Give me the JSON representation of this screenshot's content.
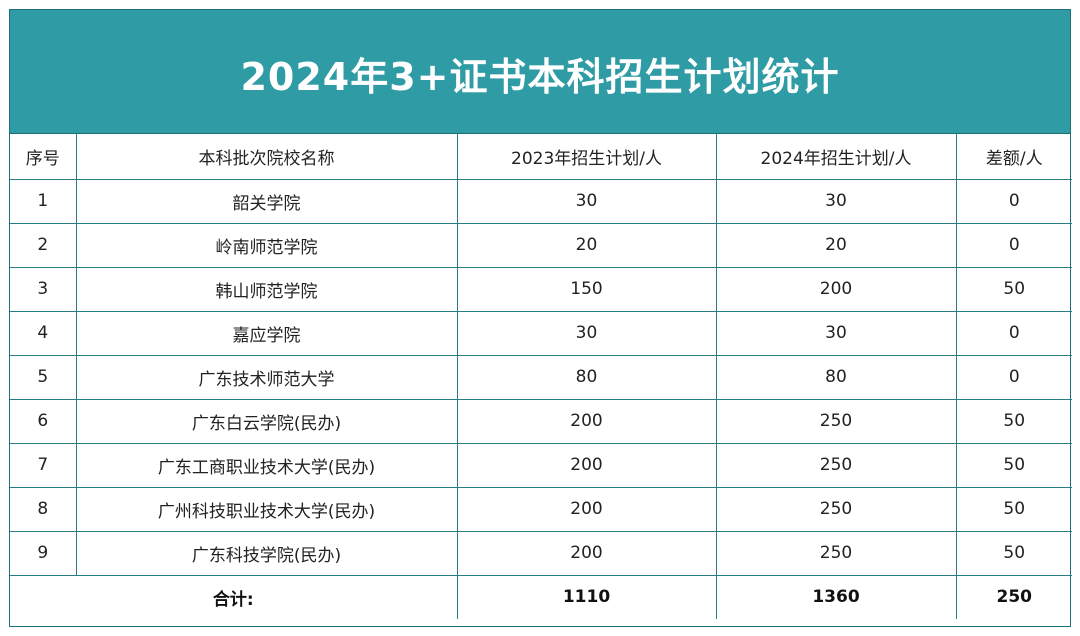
{
  "title": "2024年3+证书本科招生计划统计",
  "headers": {
    "index": "序号",
    "school": "本科批次院校名称",
    "plan_2023": "2023年招生计划/人",
    "plan_2024": "2024年招生计划/人",
    "diff": "差额/人"
  },
  "rows": [
    {
      "index": "1",
      "school": "韶关学院",
      "plan_2023": "30",
      "plan_2024": "30",
      "diff": "0"
    },
    {
      "index": "2",
      "school": "岭南师范学院",
      "plan_2023": "20",
      "plan_2024": "20",
      "diff": "0"
    },
    {
      "index": "3",
      "school": "韩山师范学院",
      "plan_2023": "150",
      "plan_2024": "200",
      "diff": "50"
    },
    {
      "index": "4",
      "school": "嘉应学院",
      "plan_2023": "30",
      "plan_2024": "30",
      "diff": "0"
    },
    {
      "index": "5",
      "school": "广东技术师范大学",
      "plan_2023": "80",
      "plan_2024": "80",
      "diff": "0"
    },
    {
      "index": "6",
      "school": "广东白云学院(民办)",
      "plan_2023": "200",
      "plan_2024": "250",
      "diff": "50"
    },
    {
      "index": "7",
      "school": "广东工商职业技术大学(民办)",
      "plan_2023": "200",
      "plan_2024": "250",
      "diff": "50"
    },
    {
      "index": "8",
      "school": "广州科技职业技术大学(民办)",
      "plan_2023": "200",
      "plan_2024": "250",
      "diff": "50"
    },
    {
      "index": "9",
      "school": "广东科技学院(民办)",
      "plan_2023": "200",
      "plan_2024": "250",
      "diff": "50"
    }
  ],
  "total": {
    "label": "合计:",
    "plan_2023": "1110",
    "plan_2024": "1360",
    "diff": "250"
  }
}
